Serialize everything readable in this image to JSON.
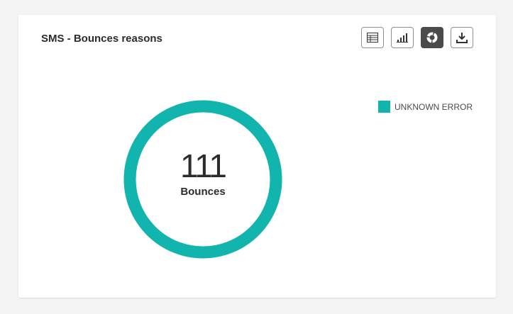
{
  "title": "SMS - Bounces reasons",
  "toolbar": {
    "icons": [
      "table-icon",
      "bar-chart-icon",
      "donut-chart-icon",
      "download-icon"
    ],
    "active": "donut-chart-icon"
  },
  "chart_data": {
    "type": "pie",
    "donut": true,
    "categories": [
      "UNKNOWN ERROR"
    ],
    "values": [
      111
    ],
    "colors": [
      "#12b5ad"
    ],
    "center_value": "111",
    "center_label": "Bounces",
    "legend": "top-right"
  }
}
